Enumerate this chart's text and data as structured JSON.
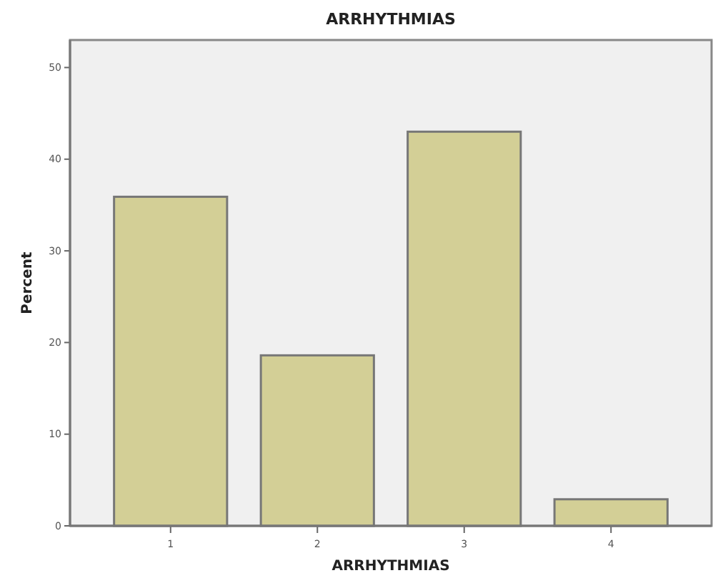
{
  "chart_data": {
    "type": "bar",
    "title": "ARRHYTHMIAS",
    "xlabel": "ARRHYTHMIAS",
    "ylabel": "Percent",
    "categories": [
      "1",
      "2",
      "3",
      "4"
    ],
    "values": [
      35.9,
      18.6,
      43.0,
      2.9
    ],
    "color": "#d3cf96",
    "ylim": [
      0,
      53
    ],
    "yticks": [
      0,
      10,
      20,
      30,
      40,
      50
    ],
    "grid": false
  }
}
